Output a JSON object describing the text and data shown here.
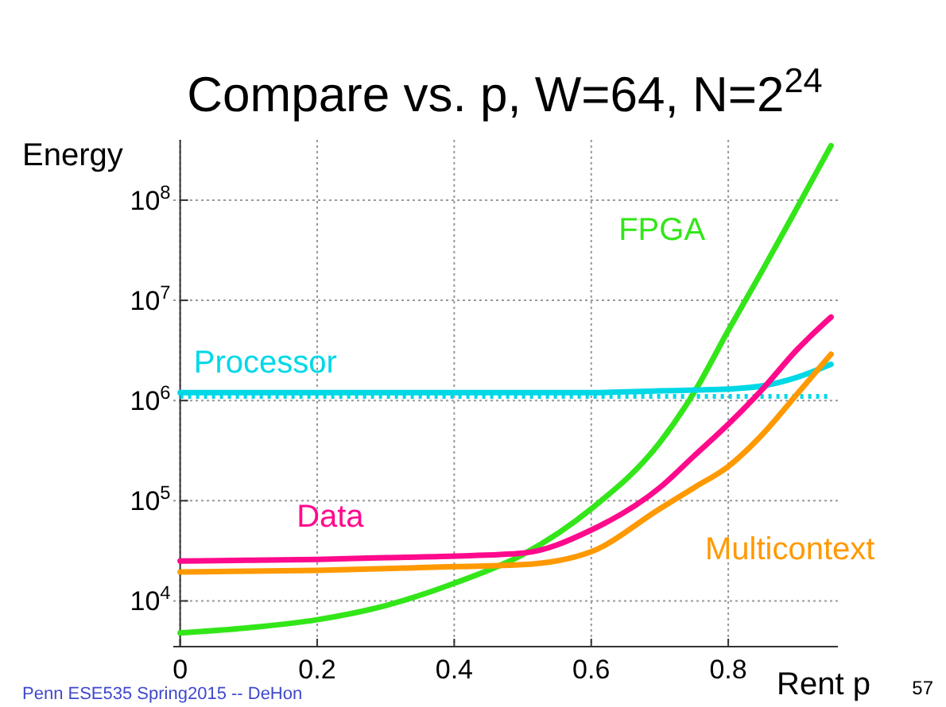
{
  "chart_data": {
    "type": "line",
    "title": "Compare vs. p, W=64, N=2$^{24}$",
    "xlabel": "Rent p",
    "ylabel": "Energy",
    "x": [
      0,
      0.1,
      0.2,
      0.3,
      0.4,
      0.5,
      0.6,
      0.7,
      0.75,
      0.8,
      0.85,
      0.9,
      0.95
    ],
    "series": [
      {
        "name": "FPGA",
        "color": "#33e619",
        "values": [
          4800,
          5400,
          6500,
          9000,
          15000,
          29000,
          83000,
          380000,
          1200000,
          5000000,
          20000000,
          83000000,
          350000000
        ]
      },
      {
        "name": "Processor",
        "color": "#00d8e6",
        "values": [
          1200000,
          1200000,
          1200000,
          1200000,
          1200000,
          1200000,
          1200000,
          1250000,
          1270000,
          1300000,
          1400000,
          1700000,
          2300000
        ]
      },
      {
        "name": "Data",
        "color": "#ff0a8c",
        "values": [
          25000,
          25500,
          26000,
          27000,
          28000,
          30000,
          51000,
          135000,
          280000,
          580000,
          1300000,
          3200000,
          6800000
        ]
      },
      {
        "name": "Multicontext",
        "color": "#ff9900",
        "values": [
          19500,
          19800,
          20200,
          21000,
          22000,
          23000,
          31000,
          83000,
          135000,
          220000,
          460000,
          1150000,
          2900000
        ]
      }
    ],
    "ref_lines": [
      {
        "axis": "y",
        "value": 1100000,
        "color": "#00d8e6",
        "line_style": "dotted"
      }
    ],
    "log": "y",
    "grid": true,
    "legend": false,
    "line_style": "solid",
    "xlim": [
      -0.01,
      0.96
    ],
    "xticks": [
      0,
      0.2,
      0.4,
      0.6,
      0.8
    ],
    "ylim": [
      3500,
      400000000
    ],
    "yticks": [
      {
        "value": 10000,
        "label": "10$^{4}$"
      },
      {
        "value": 100000,
        "label": "10$^{5}$"
      },
      {
        "value": 1000000,
        "label": "10$^{6}$"
      },
      {
        "value": 10000000,
        "label": "10$^{7}$"
      },
      {
        "value": 100000000,
        "label": "10$^{8}$"
      }
    ],
    "annotations": [
      "Penn ESE535 Spring2015 -- DeHon",
      "57"
    ]
  }
}
